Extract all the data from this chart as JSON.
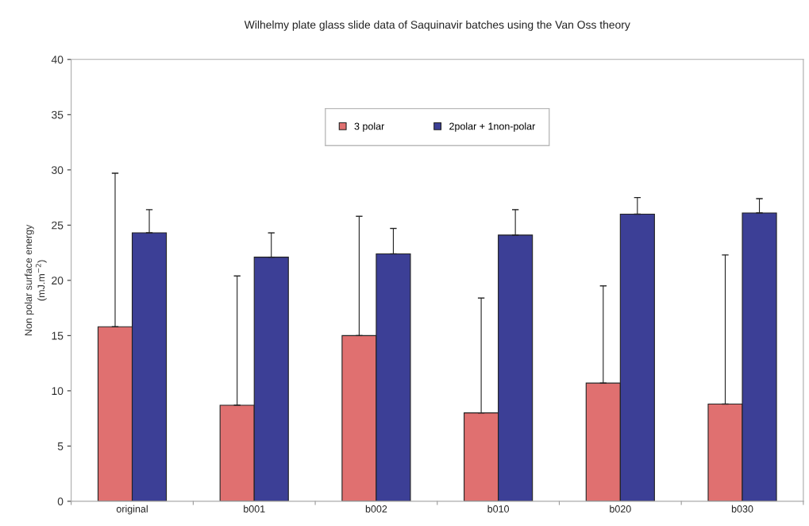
{
  "chart_data": {
    "type": "bar",
    "title": "Wilhelmy plate glass slide data of Saquinavir batches using the Van Oss theory",
    "ylabel": "Non polar surface energy\n(mJ.m$^{−2}$)",
    "categories": [
      "original",
      "b001",
      "b002",
      "b010",
      "b020",
      "b030"
    ],
    "series": [
      {
        "name": "3 polar",
        "color": "#e07070",
        "values": [
          15.8,
          8.7,
          15.0,
          8.0,
          10.7,
          8.8
        ],
        "errors": [
          [
            15.8,
            29.7
          ],
          [
            8.7,
            20.4
          ],
          [
            15.0,
            25.8
          ],
          [
            8.0,
            18.4
          ],
          [
            10.7,
            19.5
          ],
          [
            8.8,
            22.3
          ]
        ]
      },
      {
        "name": "2polar + 1non-polar",
        "color": "#3c3f96",
        "values": [
          24.3,
          22.1,
          22.4,
          24.1,
          26.0,
          26.1
        ],
        "errors": [
          [
            24.3,
            26.4
          ],
          [
            22.1,
            24.3
          ],
          [
            22.4,
            24.7
          ],
          [
            24.1,
            26.4
          ],
          [
            26.0,
            27.5
          ],
          [
            26.1,
            27.4
          ]
        ]
      }
    ],
    "ylim": [
      0,
      40
    ],
    "yticks": [
      0,
      5,
      10,
      15,
      20,
      25,
      30,
      35,
      40
    ],
    "grid": false,
    "legend": "top"
  }
}
